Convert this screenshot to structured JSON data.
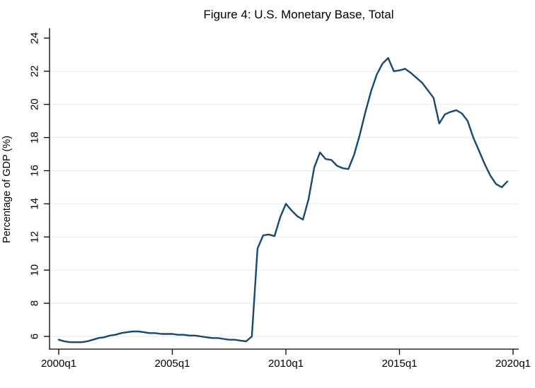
{
  "figure": {
    "title": "Figure 4: U.S. Monetary Base, Total"
  },
  "colors": {
    "line": "#1a476f",
    "title": "#22375c",
    "grid": "#e7edf3",
    "axis": "#000000"
  },
  "chart_data": {
    "type": "line",
    "title": "Figure 4: U.S. Monetary Base, Total",
    "xlabel": "",
    "ylabel": "Percentage of GDP (%)",
    "legend": "none",
    "grid": "horizontal",
    "y_ticks": [
      6,
      8,
      10,
      12,
      14,
      16,
      18,
      20,
      22,
      24
    ],
    "y_gridline_ticks": [
      6,
      8,
      10,
      12,
      14,
      16,
      18,
      20,
      22
    ],
    "ylim": [
      5.5,
      24.4
    ],
    "x_tick_labels": [
      "2000q1",
      "2005q1",
      "2010q1",
      "2015q1",
      "2020q1"
    ],
    "x_axis_range": [
      "2000q1",
      "2020q1"
    ],
    "x": [
      "2000q1",
      "2000q2",
      "2000q3",
      "2000q4",
      "2001q1",
      "2001q2",
      "2001q3",
      "2001q4",
      "2002q1",
      "2002q2",
      "2002q3",
      "2002q4",
      "2003q1",
      "2003q2",
      "2003q3",
      "2003q4",
      "2004q1",
      "2004q2",
      "2004q3",
      "2004q4",
      "2005q1",
      "2005q2",
      "2005q3",
      "2005q4",
      "2006q1",
      "2006q2",
      "2006q3",
      "2006q4",
      "2007q1",
      "2007q2",
      "2007q3",
      "2007q4",
      "2008q1",
      "2008q2",
      "2008q3",
      "2008q4",
      "2009q1",
      "2009q2",
      "2009q3",
      "2009q4",
      "2010q1",
      "2010q2",
      "2010q3",
      "2010q4",
      "2011q1",
      "2011q2",
      "2011q3",
      "2011q4",
      "2012q1",
      "2012q2",
      "2012q3",
      "2012q4",
      "2013q1",
      "2013q2",
      "2013q3",
      "2013q4",
      "2014q1",
      "2014q2",
      "2014q3",
      "2014q4",
      "2015q1",
      "2015q2",
      "2015q3",
      "2015q4",
      "2016q1",
      "2016q2",
      "2016q3",
      "2016q4",
      "2017q1",
      "2017q2",
      "2017q3",
      "2017q4",
      "2018q1",
      "2018q2",
      "2018q3",
      "2018q4",
      "2019q1",
      "2019q2",
      "2019q3",
      "2019q4"
    ],
    "values": [
      5.8,
      5.7,
      5.65,
      5.65,
      5.65,
      5.7,
      5.8,
      5.9,
      5.95,
      6.05,
      6.1,
      6.2,
      6.25,
      6.3,
      6.3,
      6.25,
      6.2,
      6.2,
      6.15,
      6.15,
      6.15,
      6.1,
      6.1,
      6.05,
      6.05,
      6.0,
      5.95,
      5.9,
      5.9,
      5.85,
      5.8,
      5.8,
      5.75,
      5.7,
      6.0,
      11.3,
      12.1,
      12.15,
      12.05,
      13.2,
      14.0,
      13.6,
      13.25,
      13.05,
      14.3,
      16.2,
      17.1,
      16.7,
      16.65,
      16.3,
      16.15,
      16.1,
      16.95,
      18.15,
      19.55,
      20.8,
      21.8,
      22.45,
      22.8,
      22.0,
      22.05,
      22.15,
      21.9,
      21.6,
      21.3,
      20.85,
      20.4,
      18.85,
      19.4,
      19.55,
      19.65,
      19.45,
      19.0,
      18.0,
      17.2,
      16.4,
      15.7,
      15.2,
      15.0,
      15.35
    ]
  }
}
